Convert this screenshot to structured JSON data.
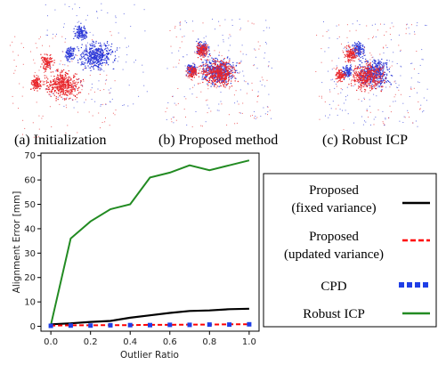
{
  "panels": [
    {
      "caption": "(a) Initialization"
    },
    {
      "caption": "(b) Proposed method"
    },
    {
      "caption": "(c) Robust ICP"
    }
  ],
  "colors": {
    "red_cloud": "#e8262b",
    "blue_cloud": "#2d3ad8",
    "proposed_fixed": "#000000",
    "proposed_updated": "#ff0000",
    "cpd": "#1f3ee6",
    "robust_icp": "#228b22"
  },
  "chart_data": {
    "type": "line",
    "xlabel": "Outlier Ratio",
    "ylabel": "Alignment Error [mm]",
    "xlim": [
      -0.05,
      1.05
    ],
    "ylim": [
      -2,
      71
    ],
    "xticks": [
      "0.0",
      "0.2",
      "0.4",
      "0.6",
      "0.8",
      "1.0"
    ],
    "yticks": [
      "0",
      "10",
      "20",
      "30",
      "40",
      "50",
      "60",
      "70"
    ],
    "grid": false,
    "legend_position": "right",
    "x": [
      0.0,
      0.1,
      0.2,
      0.3,
      0.4,
      0.5,
      0.6,
      0.7,
      0.8,
      0.9,
      1.0
    ],
    "series": [
      {
        "name": "Proposed\n(fixed variance)",
        "style": "solid",
        "color": "#000000",
        "values": [
          0.8,
          1.2,
          1.8,
          2.2,
          3.5,
          4.5,
          5.5,
          6.3,
          6.5,
          7.0,
          7.2
        ]
      },
      {
        "name": "Proposed\n(updated variance)",
        "style": "dashed",
        "color": "#ff0000",
        "values": [
          0.3,
          0.4,
          0.4,
          0.5,
          0.5,
          0.6,
          0.6,
          0.7,
          0.7,
          0.8,
          0.8
        ]
      },
      {
        "name": "CPD",
        "style": "dotted-square",
        "color": "#1f3ee6",
        "values": [
          0.2,
          0.3,
          0.3,
          0.4,
          0.5,
          0.5,
          0.6,
          0.6,
          0.7,
          0.7,
          0.8
        ]
      },
      {
        "name": "Robust ICP",
        "style": "solid",
        "color": "#228b22",
        "values": [
          0.5,
          36,
          43,
          48,
          50,
          61,
          63,
          66,
          64,
          66,
          68
        ]
      }
    ]
  }
}
